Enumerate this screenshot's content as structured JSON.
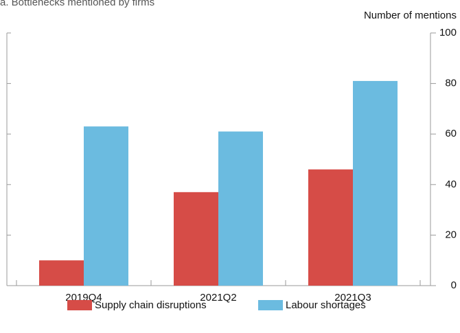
{
  "chart_data": {
    "type": "bar",
    "title": "a. Bottlenecks mentioned by firms",
    "y_axis_label": "Number of mentions",
    "categories": [
      "2019Q4",
      "2021Q2",
      "2021Q3"
    ],
    "series": [
      {
        "name": "Supply chain disruptions",
        "color": "#d64c47",
        "values": [
          10,
          37,
          46
        ]
      },
      {
        "name": "Labour shortages",
        "color": "#6bbbe0",
        "values": [
          63,
          61,
          81
        ]
      }
    ],
    "ylim": [
      0,
      100
    ],
    "yticks": [
      0,
      20,
      40,
      60,
      80,
      100
    ],
    "grid": false,
    "legend": "bottom"
  }
}
